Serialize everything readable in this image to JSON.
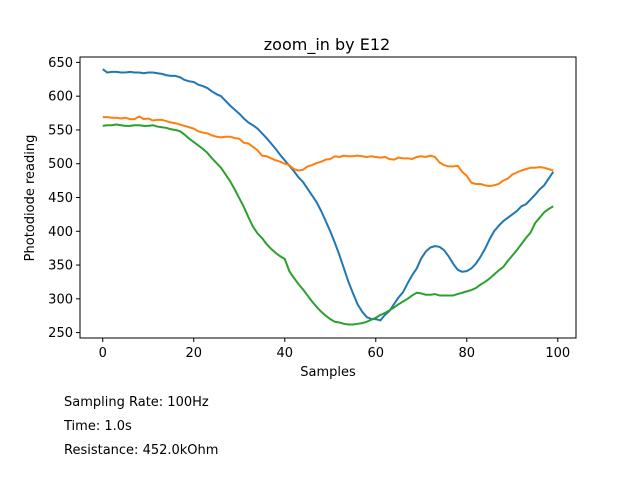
{
  "chart_data": {
    "type": "line",
    "title": "zoom_in by E12",
    "xlabel": "Samples",
    "ylabel": "Photodiode reading",
    "xlim": [
      -5,
      104
    ],
    "ylim": [
      242,
      658
    ],
    "xticks": [
      0,
      20,
      40,
      60,
      80,
      100
    ],
    "yticks": [
      250,
      300,
      350,
      400,
      450,
      500,
      550,
      600,
      650
    ],
    "grid": false,
    "legend": "none",
    "x": [
      0,
      1,
      2,
      3,
      4,
      5,
      6,
      7,
      8,
      9,
      10,
      11,
      12,
      13,
      14,
      15,
      16,
      17,
      18,
      19,
      20,
      21,
      22,
      23,
      24,
      25,
      26,
      27,
      28,
      29,
      30,
      31,
      32,
      33,
      34,
      35,
      36,
      37,
      38,
      39,
      40,
      41,
      42,
      43,
      44,
      45,
      46,
      47,
      48,
      49,
      50,
      51,
      52,
      53,
      54,
      55,
      56,
      57,
      58,
      59,
      60,
      61,
      62,
      63,
      64,
      65,
      66,
      67,
      68,
      69,
      70,
      71,
      72,
      73,
      74,
      75,
      76,
      77,
      78,
      79,
      80,
      81,
      82,
      83,
      84,
      85,
      86,
      87,
      88,
      89,
      90,
      91,
      92,
      93,
      94,
      95,
      96,
      97,
      98,
      99
    ],
    "series": [
      {
        "color": "#1f77b4",
        "values": [
          640,
          635,
          636,
          636,
          635,
          635,
          636,
          635,
          635,
          634,
          635,
          635,
          634,
          633,
          631,
          630,
          630,
          628,
          624,
          622,
          621,
          617,
          615,
          612,
          607,
          603,
          600,
          593,
          586,
          580,
          574,
          567,
          561,
          557,
          552,
          545,
          538,
          530,
          522,
          513,
          505,
          497,
          489,
          480,
          473,
          463,
          453,
          443,
          430,
          415,
          400,
          383,
          365,
          345,
          325,
          308,
          292,
          281,
          273,
          270,
          270,
          268,
          276,
          282,
          292,
          302,
          310,
          323,
          335,
          345,
          360,
          370,
          376,
          378,
          377,
          372,
          363,
          352,
          343,
          340,
          341,
          345,
          352,
          362,
          374,
          388,
          400,
          408,
          415,
          420,
          425,
          430,
          437,
          440,
          447,
          454,
          462,
          468,
          478,
          488
        ]
      },
      {
        "color": "#ff7f0e",
        "values": [
          569,
          569,
          568,
          568,
          567,
          568,
          566,
          566,
          570,
          566,
          567,
          564,
          565,
          565,
          563,
          561,
          560,
          558,
          556,
          554,
          552,
          548,
          546,
          545,
          542,
          540,
          539,
          540,
          540,
          538,
          537,
          531,
          530,
          525,
          520,
          512,
          511,
          508,
          505,
          503,
          500,
          498,
          492,
          490,
          491,
          496,
          498,
          501,
          503,
          506,
          507,
          511,
          510,
          512,
          511,
          511,
          512,
          511,
          510,
          511,
          510,
          509,
          510,
          507,
          506,
          509,
          508,
          508,
          507,
          510,
          511,
          510,
          512,
          510,
          502,
          498,
          496,
          496,
          497,
          488,
          482,
          472,
          470,
          470,
          468,
          467,
          468,
          470,
          475,
          478,
          484,
          487,
          490,
          492,
          494,
          494,
          495,
          494,
          492,
          490
        ]
      },
      {
        "color": "#2ca02c",
        "values": [
          556,
          557,
          557,
          558,
          557,
          556,
          556,
          557,
          557,
          556,
          556,
          557,
          555,
          554,
          553,
          551,
          550,
          548,
          543,
          537,
          532,
          527,
          522,
          516,
          508,
          501,
          494,
          484,
          474,
          462,
          449,
          436,
          421,
          407,
          397,
          390,
          381,
          374,
          368,
          363,
          359,
          341,
          331,
          322,
          314,
          305,
          296,
          288,
          281,
          275,
          270,
          266,
          265,
          263,
          262,
          262,
          263,
          264,
          266,
          269,
          272,
          276,
          279,
          283,
          287,
          292,
          296,
          300,
          305,
          309,
          308,
          306,
          306,
          307,
          305,
          305,
          305,
          305,
          307,
          309,
          311,
          313,
          316,
          321,
          325,
          330,
          336,
          342,
          347,
          356,
          364,
          372,
          381,
          390,
          398,
          412,
          420,
          428,
          433,
          437
        ]
      }
    ]
  },
  "info": {
    "sampling_rate": "Sampling Rate: 100Hz",
    "time": "Time: 1.0s",
    "resistance": "Resistance: 452.0kOhm"
  }
}
